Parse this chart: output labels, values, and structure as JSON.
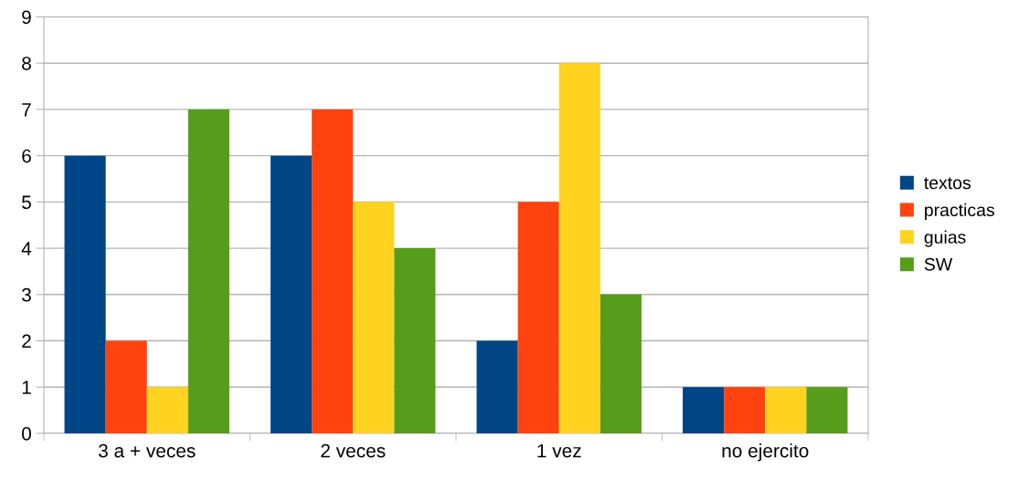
{
  "chart_data": {
    "type": "bar",
    "categories": [
      "3 a + veces",
      "2 veces",
      "1 vez",
      "no ejercito"
    ],
    "series": [
      {
        "name": "textos",
        "color": "#004586",
        "values": [
          6,
          6,
          2,
          1
        ]
      },
      {
        "name": "practicas",
        "color": "#ff420e",
        "values": [
          2,
          7,
          5,
          1
        ]
      },
      {
        "name": "guias",
        "color": "#ffd320",
        "values": [
          1,
          5,
          8,
          1
        ]
      },
      {
        "name": "SW",
        "color": "#579d1c",
        "values": [
          7,
          4,
          3,
          1
        ]
      }
    ],
    "ylim": [
      0,
      9
    ],
    "yticks": [
      0,
      1,
      2,
      3,
      4,
      5,
      6,
      7,
      8,
      9
    ],
    "grid": "y",
    "legend": "right"
  }
}
